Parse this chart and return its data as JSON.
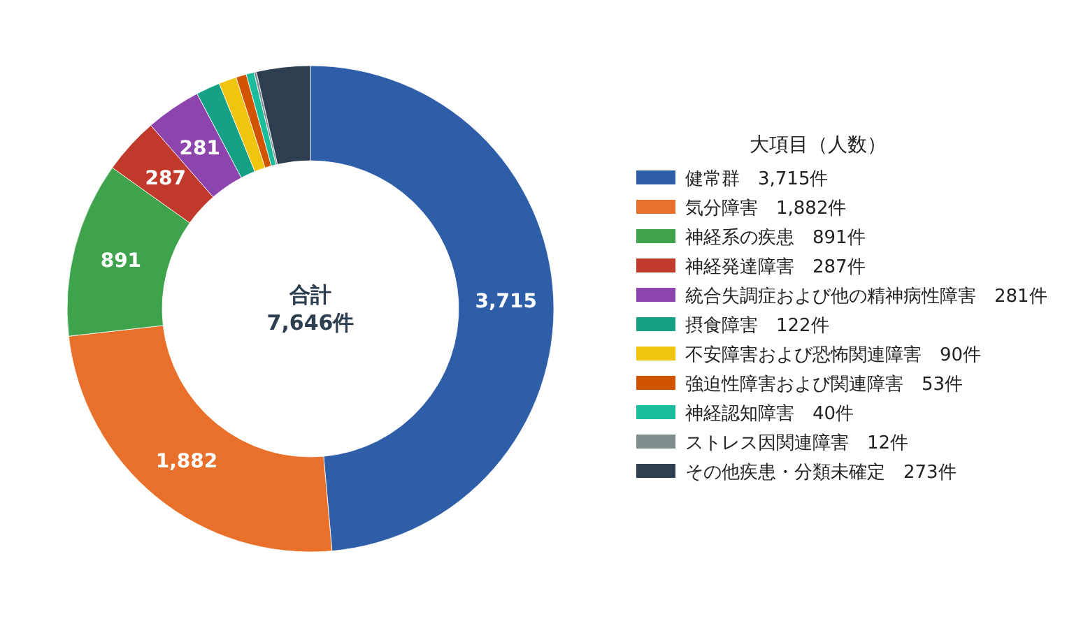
{
  "chart_data": {
    "type": "donut",
    "legend_title": "大項目（人数）",
    "legend": "right",
    "categories": [
      "健常群　3,715件",
      "気分障害　1,882件",
      "神経系の疾患　891件",
      "神経発達障害　287件",
      "統合失調症および他の精神病性障害　281件",
      "摂食障害　122件",
      "不安障害および恐怖関連障害　90件",
      "強迫性障害および関連障害　53件",
      "神経認知障害　40件",
      "ストレス因関連障害　12件",
      "その他疾患・分類未確定　273件"
    ],
    "values": [
      3715,
      1882,
      891,
      287,
      281,
      122,
      90,
      53,
      40,
      12,
      273
    ],
    "value_labels": [
      "3,715",
      "1,882",
      "891",
      "287",
      "281",
      null,
      null,
      null,
      null,
      null,
      null
    ],
    "colors": [
      "#2e5ea8",
      "#e8702a",
      "#3fa34d",
      "#c0392b",
      "#8e44ad",
      "#16a085",
      "#f1c40f",
      "#d35400",
      "#1abc9c",
      "#7f8c8d",
      "#2c3e50"
    ],
    "annotations": [
      "合計",
      "7,646件"
    ]
  }
}
